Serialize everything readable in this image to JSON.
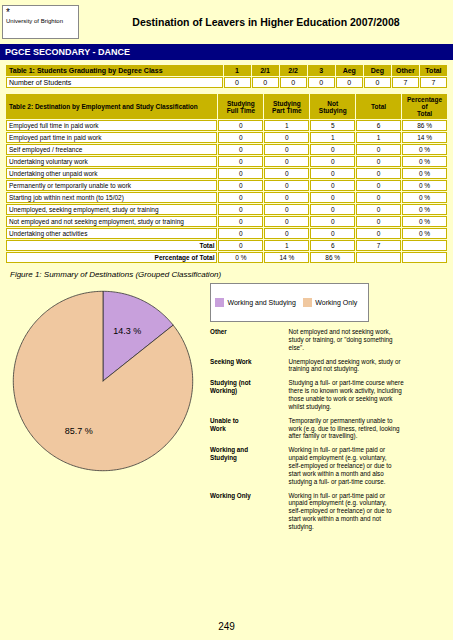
{
  "title": "Destination of Leavers in Higher Education 2007/2008",
  "subtitle": "PGCE SECONDARY - DANCE",
  "annotations": [
    "*",
    "University of Brighton",
    "249"
  ],
  "chart_data": [
    {
      "type": "table",
      "columns": [
        "Table 1: Students Graduating by Degree Class",
        "1",
        "2/1",
        "2/2",
        "3",
        "Aeg",
        "Deg",
        "Other",
        "Total"
      ],
      "rows": [
        [
          "Number of Students",
          "0",
          "0",
          "0",
          "0",
          "0",
          "0",
          "7",
          "7"
        ]
      ]
    },
    {
      "type": "table",
      "columns": [
        "Table 2: Destination by Employment and Study Classification",
        "Studying\nFull Time",
        "Studying\nPart Time",
        "Not\nStudying",
        "Total",
        "Percentage of\nTotal"
      ],
      "rows": [
        [
          "Employed full time in paid work",
          "0",
          "1",
          "5",
          "6",
          "86 %"
        ],
        [
          "Employed part time in paid work",
          "0",
          "0",
          "1",
          "1",
          "14 %"
        ],
        [
          "Self employed / freelance",
          "0",
          "0",
          "0",
          "0",
          "0 %"
        ],
        [
          "Undertaking voluntary work",
          "0",
          "0",
          "0",
          "0",
          "0 %"
        ],
        [
          "Undertaking other unpaid work",
          "0",
          "0",
          "0",
          "0",
          "0 %"
        ],
        [
          "Permanently or temporarily unable to work",
          "0",
          "0",
          "0",
          "0",
          "0 %"
        ],
        [
          "Starting job within next month (to 15/02)",
          "0",
          "0",
          "0",
          "0",
          "0 %"
        ],
        [
          "Unemployed, seeking employment, study or training",
          "0",
          "0",
          "0",
          "0",
          "0 %"
        ],
        [
          "Not employed and not seeking employment, study or training",
          "0",
          "0",
          "0",
          "0",
          "0 %"
        ],
        [
          "Undertaking other activities",
          "0",
          "0",
          "0",
          "0",
          "0 %"
        ],
        [
          "Total",
          "0",
          "1",
          "6",
          "7",
          null
        ],
        [
          "Percentage of Total",
          "0 %",
          "14 %",
          "86 %",
          null,
          null
        ]
      ]
    },
    {
      "type": "pie",
      "title": "Figure 1: Summary of Destinations (Grouped Classification)",
      "categories": [
        "Working and Studying",
        "Working Only"
      ],
      "values": [
        14.3,
        85.7
      ],
      "value_labels": [
        "14.3 %",
        "85.7 %"
      ],
      "colors": [
        "#C8A0DC",
        "#F0C8A0"
      ],
      "data_labels": true,
      "legend": "right"
    },
    {
      "type": "table",
      "rows": [
        [
          "Other",
          "Not employed and not seeking work,\nstudy or training, or \"doing something\nelse\"."
        ],
        [
          "Seeking Work",
          "Unemployed and seeking work, study or\ntraining and not studying."
        ],
        [
          "Studying (not\nWorking)",
          "Studying a full- or part-time course where\nthere is no known work activity, including\nthose unable to work or seeking work\nwhilst studying."
        ],
        [
          "Unable to\nWork",
          "Temporarily or permanently unable to\nwork (e.g. due to illness, retired, looking\nafter family or travelling)."
        ],
        [
          "Working and\nStudying",
          "Working in full- or part-time paid or\nunpaid employment (e.g. voluntary,\nself-employed or freelance) or due to\nstart work within a month and also\nstudying a full- or part-time course."
        ],
        [
          "Working Only",
          "Working in full- or part-time paid or\nunpaid employment (e.g. voluntary,\nself-employed or freelance) or due to\nstart work within a month and not\nstudying."
        ]
      ]
    }
  ]
}
